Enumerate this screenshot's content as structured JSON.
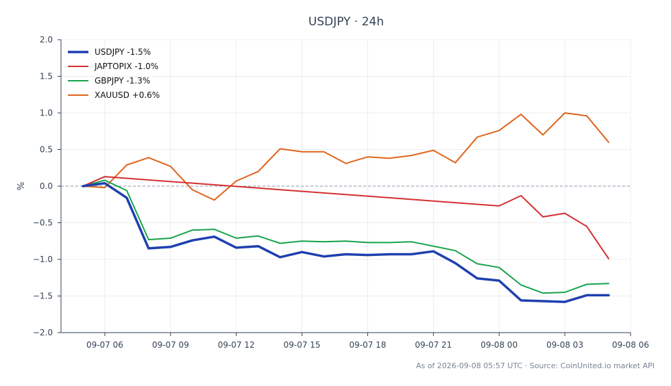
{
  "footer": "As of 2026-09-08 05:57 UTC · Source: CoinUnited.io market API",
  "chart_data": {
    "type": "line",
    "title": "USDJPY · 24h",
    "xlabel": "",
    "ylabel": "%",
    "x_start": "2026-09-07 04:00",
    "x_end": "2026-09-08 06:00",
    "x_ticks": [
      "09-07 06",
      "09-07 09",
      "09-07 12",
      "09-07 15",
      "09-07 18",
      "09-07 21",
      "09-08 00",
      "09-08 03",
      "09-08 06"
    ],
    "ylim": [
      -2.0,
      2.0
    ],
    "y_ticks": [
      "2.0",
      "1.5",
      "1.0",
      "0.5",
      "0.0",
      "−0.5",
      "−1.0",
      "−1.5",
      "−2.0"
    ],
    "grid": true,
    "legend_position": "top-left",
    "zero_line": true,
    "series": [
      {
        "name": "USDJPY -1.5%",
        "color": "#1e40af",
        "values": [
          [
            "2026-09-07 05:00",
            0.0
          ],
          [
            "2026-09-07 06:00",
            0.04
          ],
          [
            "2026-09-07 07:00",
            -0.16
          ],
          [
            "2026-09-07 08:00",
            -0.85
          ],
          [
            "2026-09-07 09:00",
            -0.83
          ],
          [
            "2026-09-07 10:00",
            -0.74
          ],
          [
            "2026-09-07 11:00",
            -0.69
          ],
          [
            "2026-09-07 12:00",
            -0.84
          ],
          [
            "2026-09-07 13:00",
            -0.82
          ],
          [
            "2026-09-07 14:00",
            -0.97
          ],
          [
            "2026-09-07 15:00",
            -0.9
          ],
          [
            "2026-09-07 16:00",
            -0.96
          ],
          [
            "2026-09-07 17:00",
            -0.93
          ],
          [
            "2026-09-07 18:00",
            -0.94
          ],
          [
            "2026-09-07 19:00",
            -0.93
          ],
          [
            "2026-09-07 20:00",
            -0.93
          ],
          [
            "2026-09-07 21:00",
            -0.89
          ],
          [
            "2026-09-07 22:00",
            -1.05
          ],
          [
            "2026-09-07 23:00",
            -1.26
          ],
          [
            "2026-09-08 00:00",
            -1.29
          ],
          [
            "2026-09-08 01:00",
            -1.56
          ],
          [
            "2026-09-08 02:00",
            -1.57
          ],
          [
            "2026-09-08 03:00",
            -1.58
          ],
          [
            "2026-09-08 04:00",
            -1.49
          ],
          [
            "2026-09-08 05:00",
            -1.49
          ]
        ]
      },
      {
        "name": "JAPTOPIX -1.0%",
        "color": "#d32f2f",
        "values": [
          [
            "2026-09-07 05:00",
            0.0
          ],
          [
            "2026-09-07 06:00",
            0.13
          ],
          [
            "2026-09-08 00:00",
            -0.27
          ],
          [
            "2026-09-08 01:00",
            -0.13
          ],
          [
            "2026-09-08 02:00",
            -0.42
          ],
          [
            "2026-09-08 03:00",
            -0.37
          ],
          [
            "2026-09-08 04:00",
            -0.55
          ],
          [
            "2026-09-08 05:00",
            -0.99
          ]
        ]
      },
      {
        "name": "GBPJPY -1.3%",
        "color": "#16a34a",
        "values": [
          [
            "2026-09-07 05:00",
            0.0
          ],
          [
            "2026-09-07 06:00",
            0.08
          ],
          [
            "2026-09-07 07:00",
            -0.06
          ],
          [
            "2026-09-07 08:00",
            -0.73
          ],
          [
            "2026-09-07 09:00",
            -0.71
          ],
          [
            "2026-09-07 10:00",
            -0.6
          ],
          [
            "2026-09-07 11:00",
            -0.59
          ],
          [
            "2026-09-07 12:00",
            -0.71
          ],
          [
            "2026-09-07 13:00",
            -0.68
          ],
          [
            "2026-09-07 14:00",
            -0.78
          ],
          [
            "2026-09-07 15:00",
            -0.75
          ],
          [
            "2026-09-07 16:00",
            -0.76
          ],
          [
            "2026-09-07 17:00",
            -0.75
          ],
          [
            "2026-09-07 18:00",
            -0.77
          ],
          [
            "2026-09-07 19:00",
            -0.77
          ],
          [
            "2026-09-07 20:00",
            -0.76
          ],
          [
            "2026-09-07 21:00",
            -0.82
          ],
          [
            "2026-09-07 22:00",
            -0.88
          ],
          [
            "2026-09-07 23:00",
            -1.06
          ],
          [
            "2026-09-08 00:00",
            -1.11
          ],
          [
            "2026-09-08 01:00",
            -1.35
          ],
          [
            "2026-09-08 02:00",
            -1.46
          ],
          [
            "2026-09-08 03:00",
            -1.45
          ],
          [
            "2026-09-08 04:00",
            -1.34
          ],
          [
            "2026-09-08 05:00",
            -1.33
          ]
        ]
      },
      {
        "name": "XAUUSD +0.6%",
        "color": "#e0641c",
        "values": [
          [
            "2026-09-07 05:00",
            0.0
          ],
          [
            "2026-09-07 06:00",
            -0.02
          ],
          [
            "2026-09-07 07:00",
            0.29
          ],
          [
            "2026-09-07 08:00",
            0.39
          ],
          [
            "2026-09-07 09:00",
            0.27
          ],
          [
            "2026-09-07 10:00",
            -0.05
          ],
          [
            "2026-09-07 11:00",
            -0.19
          ],
          [
            "2026-09-07 12:00",
            0.07
          ],
          [
            "2026-09-07 13:00",
            0.2
          ],
          [
            "2026-09-07 14:00",
            0.51
          ],
          [
            "2026-09-07 15:00",
            0.47
          ],
          [
            "2026-09-07 16:00",
            0.47
          ],
          [
            "2026-09-07 17:00",
            0.31
          ],
          [
            "2026-09-07 18:00",
            0.4
          ],
          [
            "2026-09-07 19:00",
            0.38
          ],
          [
            "2026-09-07 20:00",
            0.42
          ],
          [
            "2026-09-07 21:00",
            0.49
          ],
          [
            "2026-09-07 22:00",
            0.32
          ],
          [
            "2026-09-07 23:00",
            0.67
          ],
          [
            "2026-09-08 00:00",
            0.76
          ],
          [
            "2026-09-08 01:00",
            0.98
          ],
          [
            "2026-09-08 02:00",
            0.7
          ],
          [
            "2026-09-08 03:00",
            1.0
          ],
          [
            "2026-09-08 04:00",
            0.96
          ],
          [
            "2026-09-08 05:00",
            0.6
          ]
        ]
      }
    ]
  }
}
